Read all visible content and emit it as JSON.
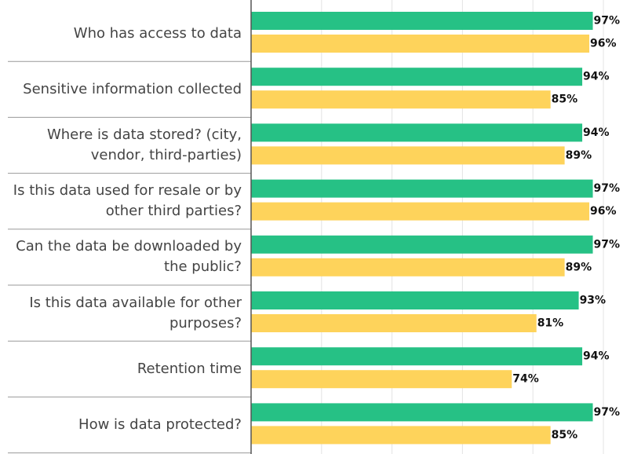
{
  "chart_data": {
    "type": "bar",
    "orientation": "horizontal",
    "categories": [
      "Who has access to data",
      "Sensitive information collected",
      "Where is data stored? (city, vendor, third-parties)",
      "Is this data used for resale or by other third parties?",
      "Can the data be downloaded by the public?",
      "Is this data available for other purposes?",
      "Retention time",
      "How is data protected?"
    ],
    "series": [
      {
        "color": "#26c185",
        "values": [
          97,
          94,
          94,
          97,
          97,
          93,
          94,
          97
        ],
        "value_labels": [
          "97%",
          "94%",
          "94%",
          "97%",
          "97%",
          "93%",
          "94%",
          "97%"
        ]
      },
      {
        "color": "#fed35b",
        "values": [
          96,
          85,
          89,
          96,
          89,
          81,
          74,
          85
        ],
        "value_labels": [
          "96%",
          "85%",
          "89%",
          "96%",
          "89%",
          "81%",
          "74%",
          "85%"
        ]
      }
    ],
    "xlim": [
      0,
      100
    ],
    "xticks": [
      0,
      20,
      40,
      60,
      80,
      100
    ],
    "grid": true
  }
}
